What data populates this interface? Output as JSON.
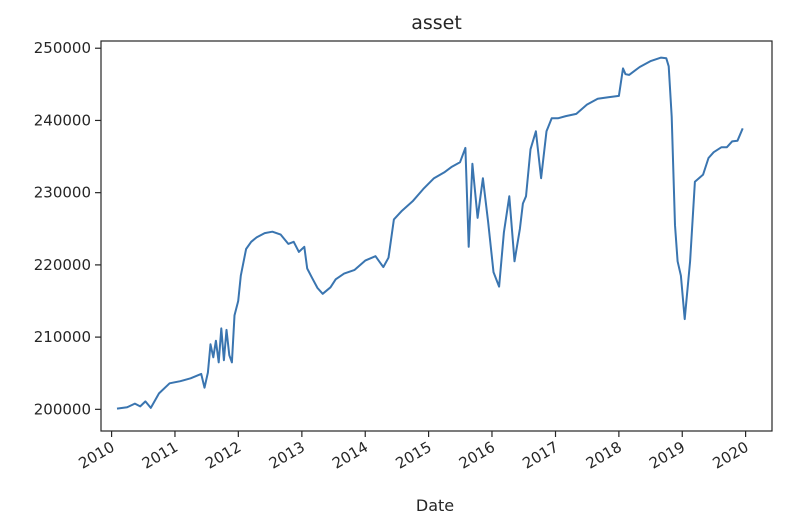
{
  "chart_data": {
    "type": "line",
    "title": "asset",
    "xlabel": "Date",
    "ylabel": "",
    "grid": false,
    "legend": "none",
    "xlim": [
      "2009-11-01",
      "2020-06-01"
    ],
    "ylim": [
      197000,
      251000
    ],
    "x_ticks": [
      "2010",
      "2011",
      "2012",
      "2013",
      "2014",
      "2015",
      "2016",
      "2017",
      "2018",
      "2019",
      "2020"
    ],
    "y_ticks": [
      "200000",
      "210000",
      "220000",
      "230000",
      "240000",
      "250000"
    ],
    "series": [
      {
        "color": "#3a75b0",
        "x": [
          "2010-02-01",
          "2010-04-01",
          "2010-05-15",
          "2010-06-15",
          "2010-07-15",
          "2010-08-15",
          "2010-10-01",
          "2010-12-01",
          "2011-02-01",
          "2011-04-01",
          "2011-06-01",
          "2011-06-20",
          "2011-07-10",
          "2011-07-25",
          "2011-08-10",
          "2011-08-25",
          "2011-09-10",
          "2011-09-25",
          "2011-10-10",
          "2011-10-25",
          "2011-11-10",
          "2011-11-25",
          "2011-12-10",
          "2011-12-31",
          "2012-01-15",
          "2012-02-15",
          "2012-03-15",
          "2012-04-15",
          "2012-06-01",
          "2012-07-15",
          "2012-09-01",
          "2012-10-15",
          "2012-11-15",
          "2012-12-15",
          "2013-01-15",
          "2013-02-01",
          "2013-03-01",
          "2013-04-01",
          "2013-05-01",
          "2013-06-15",
          "2013-07-15",
          "2013-09-01",
          "2013-11-01",
          "2014-01-01",
          "2014-03-01",
          "2014-04-15",
          "2014-05-15",
          "2014-06-15",
          "2014-08-01",
          "2014-10-01",
          "2014-12-01",
          "2015-02-01",
          "2015-04-01",
          "2015-05-15",
          "2015-07-01",
          "2015-08-01",
          "2015-08-20",
          "2015-09-10",
          "2015-10-10",
          "2015-11-10",
          "2015-12-10",
          "2016-01-10",
          "2016-02-11",
          "2016-03-10",
          "2016-04-10",
          "2016-05-10",
          "2016-06-10",
          "2016-06-27",
          "2016-07-15",
          "2016-08-10",
          "2016-09-10",
          "2016-10-10",
          "2016-11-10",
          "2016-12-10",
          "2017-01-15",
          "2017-03-01",
          "2017-05-01",
          "2017-07-01",
          "2017-09-01",
          "2017-11-01",
          "2018-01-01",
          "2018-01-25",
          "2018-02-08",
          "2018-03-01",
          "2018-05-01",
          "2018-07-01",
          "2018-09-01",
          "2018-10-01",
          "2018-10-15",
          "2018-11-01",
          "2018-11-20",
          "2018-12-05",
          "2018-12-24",
          "2019-01-15",
          "2019-02-15",
          "2019-03-15",
          "2019-05-01",
          "2019-06-01",
          "2019-07-01",
          "2019-08-15",
          "2019-09-15",
          "2019-10-15",
          "2019-11-15",
          "2019-12-15"
        ],
        "y": [
          200100,
          200300,
          200800,
          200400,
          201100,
          200200,
          202200,
          203600,
          203900,
          204300,
          204900,
          203000,
          205100,
          209000,
          207200,
          209500,
          206500,
          211200,
          206800,
          211000,
          207500,
          206500,
          213000,
          215000,
          218500,
          222200,
          223200,
          223800,
          224400,
          224600,
          224200,
          222900,
          223200,
          221800,
          222500,
          219500,
          218200,
          216800,
          216000,
          216900,
          218000,
          218800,
          219300,
          220600,
          221200,
          219700,
          221000,
          226300,
          227500,
          228800,
          230500,
          232000,
          232800,
          233600,
          234200,
          236200,
          222500,
          234000,
          226500,
          232000,
          226000,
          219000,
          217000,
          224500,
          229500,
          220500,
          225000,
          228500,
          229500,
          236000,
          238500,
          232000,
          238500,
          240300,
          240300,
          240600,
          240900,
          242200,
          243000,
          243200,
          243400,
          247200,
          246400,
          246300,
          247400,
          248200,
          248700,
          248600,
          247500,
          240500,
          225500,
          220500,
          218500,
          212500,
          220500,
          231500,
          232500,
          234800,
          235600,
          236300,
          236300,
          237100,
          237200,
          238900
        ]
      }
    ]
  }
}
